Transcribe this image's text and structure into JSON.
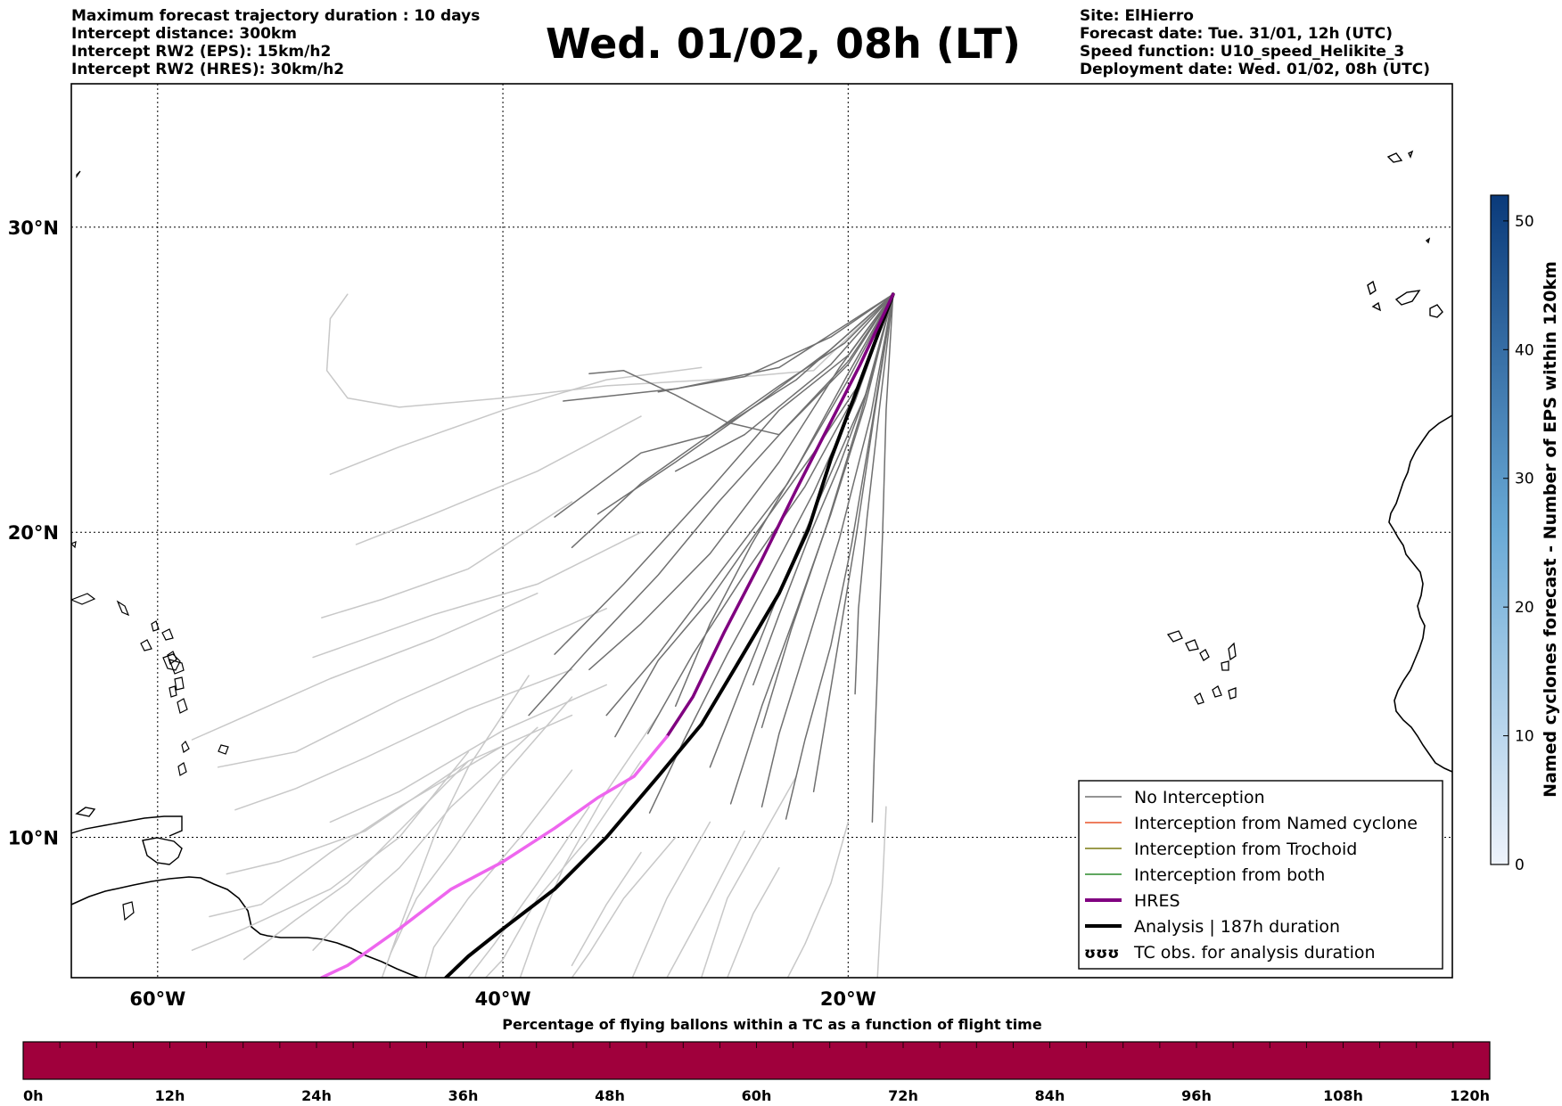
{
  "header": {
    "left_lines": [
      "Maximum forecast trajectory duration : 10 days",
      "Intercept distance: 300km",
      "Intercept RW2 (EPS):  15km/h2",
      "Intercept RW2 (HRES): 30km/h2"
    ],
    "title": "Wed. 01/02, 08h (LT)",
    "right_lines": [
      "Site: ElHierro",
      "Forecast date: Tue. 31/01, 12h (UTC)",
      "Speed function: U10_speed_Helikite_3",
      "Deployment date: Wed. 01/02, 08h (UTC)"
    ]
  },
  "map": {
    "lon_range": [
      -65,
      15
    ],
    "lat_range": [
      5.4,
      34.7
    ],
    "lon_grid": [
      -60,
      -40,
      -20
    ],
    "lat_grid": [
      10,
      20,
      30
    ],
    "lon_labels": [
      "60°W",
      "40°W",
      "20°W"
    ],
    "lat_labels": [
      "10°N",
      "20°N",
      "30°N"
    ],
    "launch_site": {
      "name": "ElHierro",
      "lon": -18.0,
      "lat": 27.7
    },
    "colors": {
      "no_interception": "#707070",
      "faded": "#c8c8c8",
      "named_cyclone": "#e8542a",
      "trochoid": "#7a7a10",
      "both": "#2a8a2a",
      "hres_early": "#800080",
      "hres_late": "#ee66ee",
      "analysis": "#000000"
    }
  },
  "legend": {
    "items": [
      "No Interception",
      "Interception from Named cyclone",
      "Interception from Trochoid",
      "Interception from both",
      "HRES",
      "Analysis | 187h duration",
      "TC obs. for analysis duration"
    ],
    "tc_symbol": "ʊʊʊ"
  },
  "colorbar": {
    "label": "Named cyclones forecast - Number of EPS within 120km",
    "ticks": [
      "0",
      "10",
      "20",
      "30",
      "40",
      "50"
    ]
  },
  "timebar": {
    "title": "Percentage of flying ballons within a TC as a function of flight time",
    "ticks": [
      "0h",
      "12h",
      "24h",
      "36h",
      "48h",
      "60h",
      "72h",
      "84h",
      "96h",
      "108h",
      "120h"
    ],
    "fill_color": "#a0003c",
    "percent_in_tc": 0
  }
}
